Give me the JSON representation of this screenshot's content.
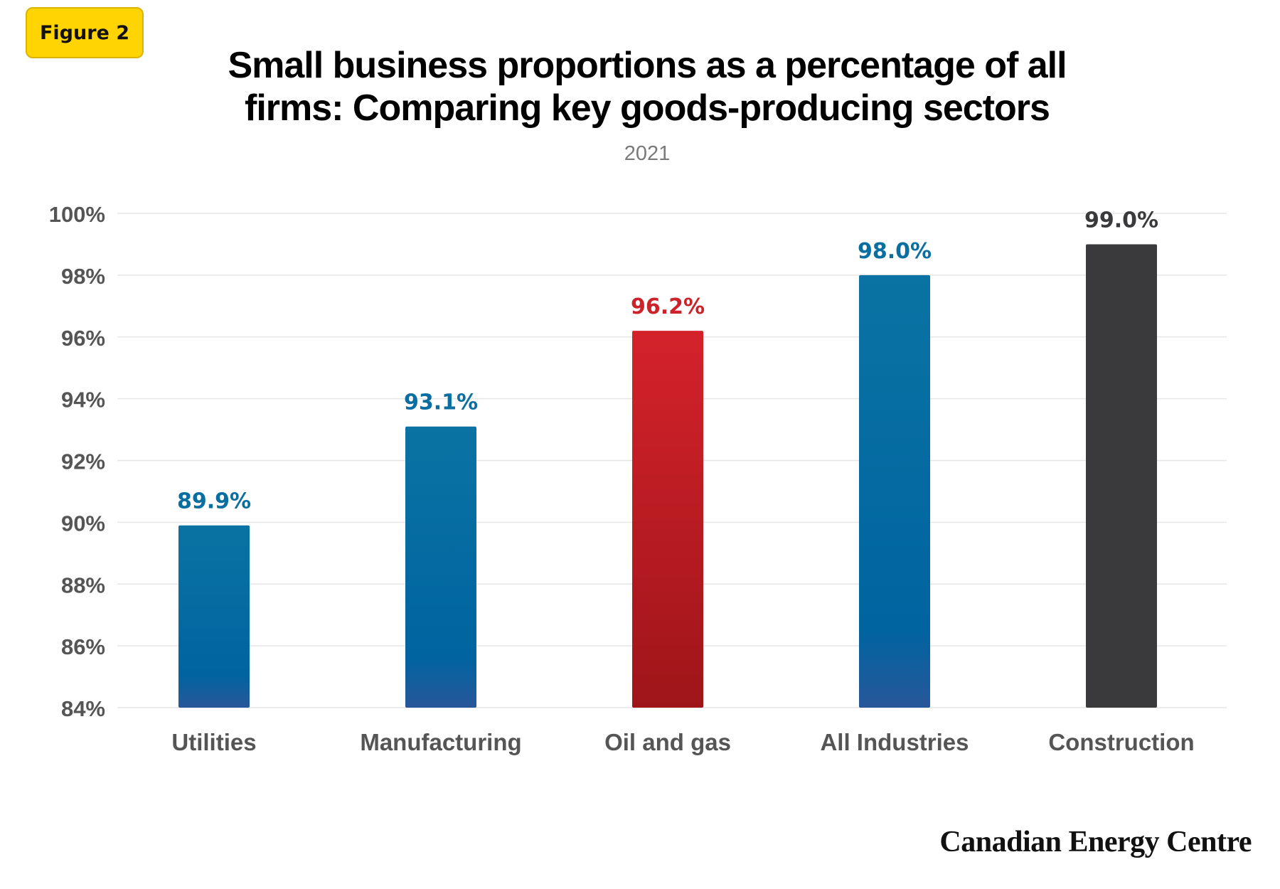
{
  "badge": "Figure 2",
  "title_line1": "Small business proportions as a percentage of all",
  "title_line2": "firms: Comparing key goods-producing sectors",
  "subtitle": "2021",
  "logo": "Canadian Energy Centre",
  "colors": {
    "blue": "#0a6ea0",
    "red": "#cc2229",
    "dark": "#3a3a3c",
    "axis_text": "#555555",
    "grid": "#e6e6e6"
  },
  "chart_data": {
    "type": "bar",
    "categories": [
      "Utilities",
      "Manufacturing",
      "Oil and gas",
      "All Industries",
      "Construction"
    ],
    "values": [
      89.9,
      93.1,
      96.2,
      98.0,
      99.0
    ],
    "value_labels": [
      "89.9%",
      "93.1%",
      "96.2%",
      "98.0%",
      "99.0%"
    ],
    "bar_colors": [
      "blue",
      "blue",
      "red",
      "blue",
      "dark"
    ],
    "ylim": [
      84,
      100
    ],
    "yticks": [
      84,
      86,
      88,
      90,
      92,
      94,
      96,
      98,
      100
    ],
    "ytick_labels": [
      "84%",
      "86%",
      "88%",
      "90%",
      "92%",
      "94%",
      "96%",
      "98%",
      "100%"
    ],
    "grid": true,
    "xlabel": "",
    "ylabel": ""
  }
}
